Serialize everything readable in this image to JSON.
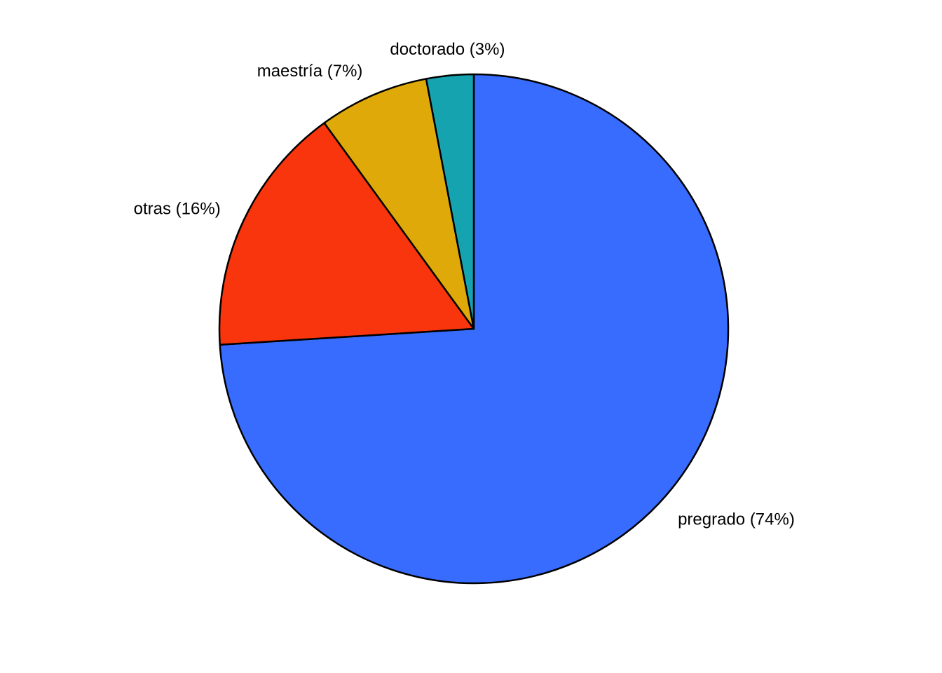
{
  "chart_data": {
    "type": "pie",
    "title": "",
    "start_direction": "top",
    "direction": "clockwise",
    "slices": [
      {
        "label": "pregrado (74%)",
        "value": 74,
        "color": "#386CFF"
      },
      {
        "label": "otras (16%)",
        "value": 16,
        "color": "#F8350C"
      },
      {
        "label": "maestría (7%)",
        "value": 7,
        "color": "#DFAA09"
      },
      {
        "label": "doctorado (3%)",
        "value": 3,
        "color": "#16A3B0"
      }
    ]
  }
}
